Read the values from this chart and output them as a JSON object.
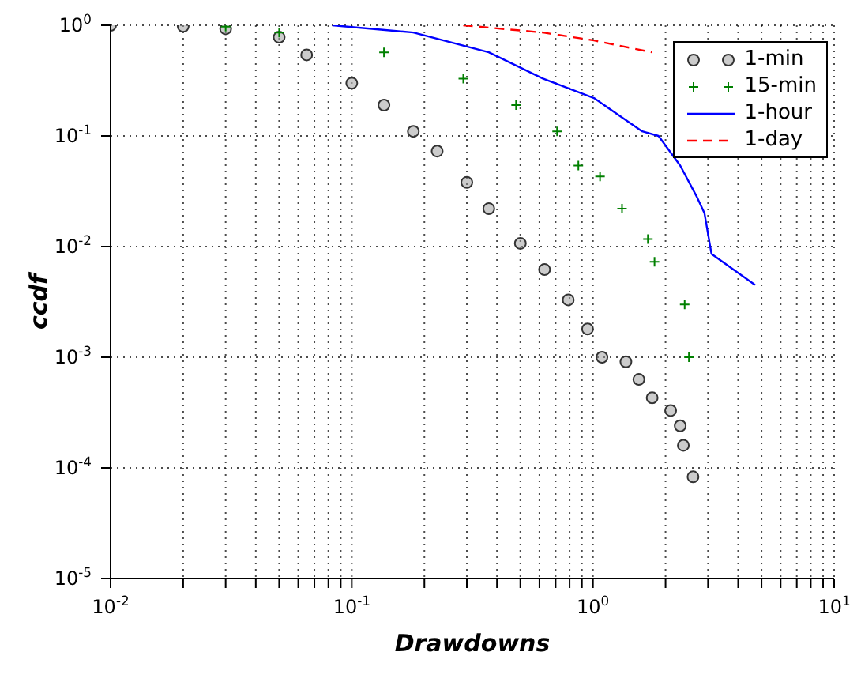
{
  "chart_data": {
    "type": "scatter",
    "xlabel": "Drawdowns",
    "ylabel": "ccdf",
    "log": "xy",
    "grid": true,
    "legend": "top right",
    "xlim": [
      0.01,
      10
    ],
    "ylim": [
      1e-05,
      1
    ],
    "xticks": [
      {
        "value": 0.01,
        "label": "10$^{-2}$"
      },
      {
        "value": 0.02,
        "label": null
      },
      {
        "value": 0.03,
        "label": null
      },
      {
        "value": 0.04,
        "label": null
      },
      {
        "value": 0.05,
        "label": null
      },
      {
        "value": 0.06,
        "label": null
      },
      {
        "value": 0.07,
        "label": null
      },
      {
        "value": 0.08,
        "label": null
      },
      {
        "value": 0.09,
        "label": null
      },
      {
        "value": 0.1,
        "label": "10$^{-1}$"
      },
      {
        "value": 0.2,
        "label": null
      },
      {
        "value": 0.3,
        "label": null
      },
      {
        "value": 0.4,
        "label": null
      },
      {
        "value": 0.5,
        "label": null
      },
      {
        "value": 0.6,
        "label": null
      },
      {
        "value": 0.7,
        "label": null
      },
      {
        "value": 0.8,
        "label": null
      },
      {
        "value": 0.9,
        "label": null
      },
      {
        "value": 1,
        "label": "10$^{0}$"
      },
      {
        "value": 2,
        "label": null
      },
      {
        "value": 3,
        "label": null
      },
      {
        "value": 4,
        "label": null
      },
      {
        "value": 5,
        "label": null
      },
      {
        "value": 6,
        "label": null
      },
      {
        "value": 7,
        "label": null
      },
      {
        "value": 8,
        "label": null
      },
      {
        "value": 9,
        "label": null
      },
      {
        "value": 10,
        "label": "10$^{1}$"
      }
    ],
    "yticks": [
      {
        "value": 1e-05,
        "label": "10$^{-5}$"
      },
      {
        "value": 0.0001,
        "label": "10$^{-4}$"
      },
      {
        "value": 0.001,
        "label": "10$^{-3}$"
      },
      {
        "value": 0.01,
        "label": "10$^{-2}$"
      },
      {
        "value": 0.1,
        "label": "10$^{-1}$"
      },
      {
        "value": 1,
        "label": "10$^{0}$"
      }
    ],
    "series": [
      {
        "name": "1-min",
        "marker": "circle",
        "color": "#333333",
        "x": [
          0.01,
          0.02,
          0.03,
          0.05,
          0.065,
          0.1,
          0.136,
          0.18,
          0.226,
          0.3,
          0.37,
          0.5,
          0.63,
          0.79,
          0.95,
          1.09,
          1.37,
          1.55,
          1.76,
          2.1,
          2.3,
          2.37,
          2.6
        ],
        "values": [
          1,
          0.98,
          0.93,
          0.78,
          0.54,
          0.3,
          0.19,
          0.11,
          0.073,
          0.038,
          0.022,
          0.0107,
          0.0062,
          0.0033,
          0.0018,
          0.001,
          0.00091,
          0.00063,
          0.00043,
          0.00033,
          0.00024,
          0.00016,
          8.3e-05
        ]
      },
      {
        "name": "15-min",
        "marker": "cross",
        "color": "#008000",
        "x": [
          0.03,
          0.05,
          0.136,
          0.29,
          0.48,
          0.71,
          0.87,
          1.07,
          1.32,
          1.69,
          1.8,
          2.4,
          2.5
        ],
        "values": [
          0.97,
          0.86,
          0.57,
          0.33,
          0.19,
          0.11,
          0.054,
          0.043,
          0.022,
          0.0117,
          0.0073,
          0.003,
          0.001
        ]
      },
      {
        "name": "1-hour",
        "type": "line",
        "line_style": "solid",
        "color": "#0000ff",
        "x": [
          0.083,
          0.18,
          0.37,
          0.62,
          1.01,
          1.6,
          1.87,
          2.3,
          2.7,
          2.9,
          3.1,
          4.7
        ],
        "values": [
          1,
          0.86,
          0.57,
          0.33,
          0.22,
          0.11,
          0.1,
          0.054,
          0.028,
          0.02,
          0.0086,
          0.0045
        ]
      },
      {
        "name": "1-day",
        "type": "line",
        "line_style": "dashed",
        "color": "#ff0000",
        "x": [
          0.29,
          0.62,
          1.01,
          1.76
        ],
        "values": [
          1,
          0.86,
          0.73,
          0.57
        ]
      }
    ]
  }
}
